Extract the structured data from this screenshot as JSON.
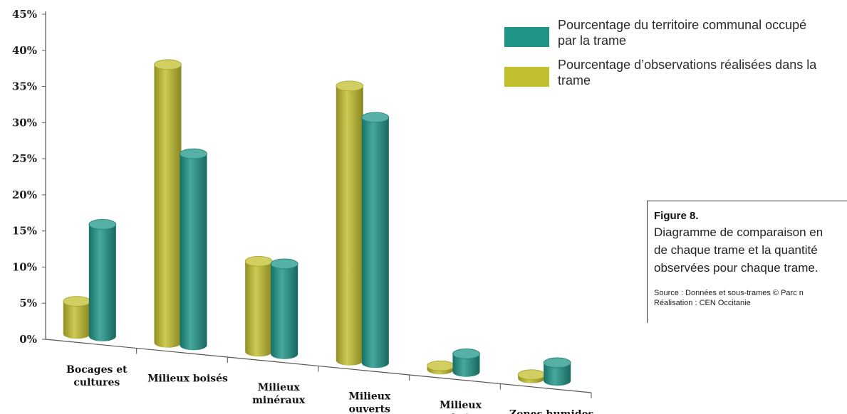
{
  "chart_data": {
    "type": "bar",
    "categories": [
      "Bocages et\ncultures",
      "Milieux boisés",
      "Milieux\nminéraux",
      "Milieux\nouverts",
      "Milieux\nurbains",
      "Zones humides"
    ],
    "series": [
      {
        "name": "Pourcentage d’observations réalisées dans la\ntrame",
        "color": "#c2bf2e",
        "values": [
          4.5,
          38.5,
          12.5,
          38,
          0.5,
          0.5
        ]
      },
      {
        "name": "Pourcentage du territoire communal occupé\npar la trame",
        "color": "#1f9587",
        "values": [
          15.5,
          26.5,
          12.5,
          34,
          2.5,
          2.5
        ]
      }
    ],
    "ylim": [
      0,
      45
    ],
    "yticks": [
      "0%",
      "5%",
      "10%",
      "15%",
      "20%",
      "25%",
      "30%",
      "35%",
      "40%",
      "45%"
    ],
    "legend_position": "top-right"
  },
  "caption": {
    "title": "Figure 8.",
    "body": "Diagramme de comparaison en\nde chaque trame et la quantité\nobservées pour chaque trame.",
    "source": "Source : Données et sous-trames © Parc n\nRéalisation : CEN Occitanie"
  }
}
